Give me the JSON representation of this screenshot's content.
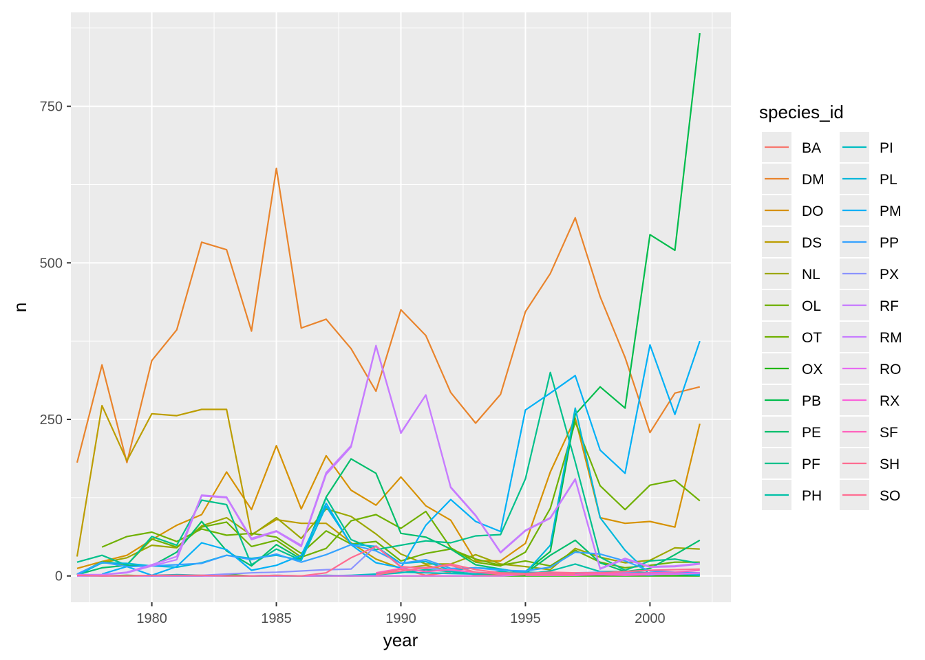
{
  "chart_data": {
    "type": "line",
    "xlabel": "year",
    "ylabel": "n",
    "xlim": [
      1976.75,
      2003.25
    ],
    "ylim": [
      -42,
      900
    ],
    "x_ticks": [
      1980,
      1985,
      1990,
      1995,
      2000
    ],
    "x_tick_labels": [
      "1980",
      "1985",
      "1990",
      "1995",
      "2000"
    ],
    "y_ticks": [
      0,
      250,
      500,
      750
    ],
    "y_tick_labels": [
      "0",
      "250",
      "500",
      "750"
    ],
    "grid": true,
    "legend_position": "right",
    "legend_title": "species_id",
    "series": [
      {
        "name": "BA",
        "color": "#F8766D",
        "x": [
          1989,
          1990,
          1991,
          1992
        ],
        "y": [
          3,
          11,
          1,
          6
        ]
      },
      {
        "name": "DM",
        "color": "#E9842C",
        "x": [
          1977,
          1978,
          1979,
          1980,
          1981,
          1982,
          1983,
          1984,
          1985,
          1986,
          1987,
          1988,
          1989,
          1990,
          1991,
          1992,
          1993,
          1994,
          1995,
          1996,
          1997,
          1998,
          1999,
          2000,
          2001,
          2002
        ],
        "y": [
          181,
          337,
          181,
          344,
          393,
          533,
          521,
          391,
          651,
          396,
          410,
          363,
          295,
          425,
          384,
          293,
          244,
          290,
          422,
          483,
          572,
          446,
          349,
          229,
          292,
          302
        ]
      },
      {
        "name": "DO",
        "color": "#D69100",
        "x": [
          1977,
          1978,
          1979,
          1980,
          1981,
          1982,
          1983,
          1984,
          1985,
          1986,
          1987,
          1988,
          1989,
          1990,
          1991,
          1992,
          1993,
          1994,
          1995,
          1996,
          1997,
          1998,
          1999,
          2000,
          2001,
          2002
        ],
        "y": [
          12,
          23,
          33,
          58,
          81,
          98,
          166,
          106,
          208,
          107,
          192,
          137,
          113,
          158,
          112,
          89,
          24,
          24,
          52,
          166,
          252,
          93,
          84,
          87,
          78,
          243
        ]
      },
      {
        "name": "DS",
        "color": "#BC9D00",
        "x": [
          1977,
          1978,
          1979,
          1980,
          1981,
          1982,
          1983,
          1984,
          1985,
          1986,
          1987,
          1988,
          1989,
          1990,
          1991,
          1992,
          1993,
          1994,
          1995
        ],
        "y": [
          31,
          272,
          184,
          259,
          256,
          266,
          266,
          66,
          90,
          84,
          84,
          53,
          27,
          12,
          17,
          8,
          2,
          1,
          5
        ]
      },
      {
        "name": "NL",
        "color": "#9CA700",
        "x": [
          1977,
          1978,
          1979,
          1980,
          1981,
          1982,
          1983,
          1984,
          1985,
          1986,
          1987,
          1988,
          1989,
          1990,
          1991,
          1992,
          1993,
          1994,
          1995,
          1996,
          1997,
          1998,
          1999,
          2000,
          2001,
          2002
        ],
        "y": [
          2,
          21,
          29,
          49,
          45,
          80,
          93,
          65,
          93,
          60,
          107,
          95,
          67,
          35,
          19,
          19,
          34,
          19,
          15,
          10,
          44,
          30,
          21,
          25,
          45,
          43
        ]
      },
      {
        "name": "OL",
        "color": "#6FB000",
        "x": [
          1978,
          1979,
          1980,
          1981,
          1982,
          1983,
          1984,
          1985,
          1986,
          1987,
          1988,
          1989,
          1990,
          1991,
          1992,
          1993,
          1994,
          1995,
          1996,
          1997,
          1998,
          1999,
          2000,
          2001,
          2002
        ],
        "y": [
          46,
          63,
          70,
          55,
          75,
          65,
          68,
          62,
          36,
          72,
          51,
          55,
          24,
          36,
          43,
          27,
          17,
          24,
          16,
          41,
          22,
          13,
          17,
          22,
          22
        ]
      },
      {
        "name": "OT",
        "color": "#6FB000",
        "x": [
          1977,
          1978,
          1979,
          1980,
          1981,
          1982,
          1983,
          1984,
          1985,
          1986,
          1987,
          1988,
          1989,
          1990,
          1991,
          1992,
          1993,
          1994,
          1995,
          1996,
          1997,
          1998,
          1999,
          2000,
          2001,
          2002
        ],
        "y": [
          2,
          23,
          18,
          59,
          46,
          78,
          86,
          47,
          57,
          30,
          44,
          88,
          98,
          76,
          103,
          45,
          22,
          16,
          38,
          108,
          246,
          144,
          106,
          145,
          153,
          120
        ]
      },
      {
        "name": "OX",
        "color": "#22B700",
        "x": [
          1977,
          1978,
          1979,
          1980,
          1981,
          1982,
          1983,
          1984,
          1985,
          1986,
          1987,
          1988,
          1989,
          1990,
          1991,
          1992,
          1993,
          1994,
          1995,
          1996,
          1997,
          1998,
          1999,
          2000,
          2001,
          2002
        ],
        "y": [
          2,
          0,
          1,
          0,
          0,
          0,
          2,
          0,
          0,
          0,
          0,
          0,
          0,
          0,
          0,
          0,
          0,
          0,
          0,
          0,
          0,
          0,
          0,
          0,
          0,
          0
        ]
      },
      {
        "name": "PB",
        "color": "#00BC4B",
        "x": [
          1995,
          1996,
          1997,
          1998,
          1999,
          2000,
          2001,
          2002
        ],
        "y": [
          7,
          39,
          258,
          302,
          268,
          545,
          520,
          867
        ]
      },
      {
        "name": "PE",
        "color": "#00BE6C",
        "x": [
          1977,
          1978,
          1979,
          1980,
          1981,
          1982,
          1983,
          1984,
          1985,
          1986,
          1987,
          1988,
          1989,
          1990,
          1991,
          1992,
          1993,
          1994,
          1995,
          1996,
          1997,
          1998,
          1999,
          2000,
          2001,
          2002
        ],
        "y": [
          2,
          13,
          17,
          16,
          38,
          87,
          40,
          16,
          50,
          27,
          126,
          187,
          164,
          68,
          62,
          43,
          18,
          11,
          4,
          33,
          57,
          21,
          7,
          12,
          34,
          57
        ]
      },
      {
        "name": "PF",
        "color": "#00C08B",
        "x": [
          1977,
          1978,
          1979,
          1980,
          1981,
          1982,
          1983,
          1984,
          1985,
          1986,
          1987,
          1988,
          1989,
          1990,
          1991,
          1992,
          1993,
          1994,
          1995,
          1996,
          1997,
          1998,
          1999,
          2000,
          2001,
          2002
        ],
        "y": [
          22,
          33,
          17,
          63,
          49,
          121,
          114,
          18,
          43,
          25,
          125,
          58,
          42,
          49,
          56,
          53,
          64,
          66,
          155,
          325,
          182,
          30,
          9,
          24,
          27,
          20
        ]
      },
      {
        "name": "PH",
        "color": "#00C0A7",
        "x": [
          1977,
          1978,
          1979,
          1980,
          1981,
          1982,
          1983,
          1984,
          1985,
          1986,
          1987,
          1988,
          1989,
          1990,
          1991,
          1992,
          1993,
          1994,
          1995,
          1996,
          1997,
          1998,
          1999,
          2000,
          2001,
          2002
        ],
        "y": [
          0,
          0,
          0,
          0,
          0,
          0,
          0,
          0,
          0,
          0,
          1,
          0,
          2,
          5,
          10,
          7,
          3,
          7,
          3,
          8,
          19,
          7,
          7,
          5,
          3,
          2
        ]
      },
      {
        "name": "PI",
        "color": "#00BDC2",
        "x": [
          1980,
          1981,
          1982,
          1983,
          1984,
          1985,
          1986,
          1987,
          1988,
          1989,
          1990,
          1991,
          1992,
          1993,
          1994,
          1995,
          1996,
          1997,
          1998,
          1999,
          2000,
          2001,
          2002
        ],
        "y": [
          1,
          2,
          1,
          0,
          0,
          1,
          0,
          0,
          1,
          3,
          6,
          5,
          4,
          3,
          4,
          6,
          5,
          4,
          3,
          3,
          1,
          5,
          3
        ]
      },
      {
        "name": "PL",
        "color": "#00B8DB",
        "x": [
          1977,
          1978,
          1979,
          1980,
          1981,
          1982,
          1983,
          1984,
          1985,
          1986,
          1987,
          1988,
          1989,
          1990,
          1991,
          1992,
          1993,
          1994,
          1995,
          1996,
          1997,
          1998,
          1999,
          2000,
          2001,
          2002
        ],
        "y": [
          1,
          21,
          20,
          16,
          14,
          21,
          33,
          28,
          33,
          25,
          111,
          51,
          47,
          20,
          23,
          9,
          13,
          11,
          5,
          49,
          268,
          93,
          41,
          2,
          3,
          1
        ]
      },
      {
        "name": "PM",
        "color": "#00B0F6",
        "x": [
          1978,
          1979,
          1980,
          1981,
          1982,
          1983,
          1984,
          1985,
          1986,
          1987,
          1988,
          1989,
          1990,
          1991,
          1992,
          1993,
          1994,
          1995,
          1996,
          1997,
          1998,
          1999,
          2000,
          2001,
          2002
        ],
        "y": [
          3,
          15,
          1,
          15,
          53,
          42,
          9,
          17,
          33,
          116,
          50,
          21,
          13,
          81,
          122,
          87,
          71,
          265,
          292,
          320,
          201,
          164,
          369,
          258,
          375
        ]
      },
      {
        "name": "PP",
        "color": "#35A2FF",
        "x": [
          1977,
          1978,
          1979,
          1980,
          1981,
          1982,
          1983,
          1984,
          1985,
          1986,
          1987,
          1988,
          1989,
          1990,
          1991,
          1992,
          1993,
          1994,
          1995,
          1996,
          1997,
          1998,
          1999,
          2000,
          2001,
          2002
        ],
        "y": [
          3,
          22,
          15,
          16,
          18,
          20,
          33,
          26,
          35,
          22,
          34,
          50,
          40,
          20,
          26,
          12,
          13,
          9,
          8,
          14,
          38,
          35,
          24,
          8,
          6,
          5
        ]
      },
      {
        "name": "PX",
        "color": "#8B93FF",
        "x": [
          1982,
          1983,
          1984,
          1985,
          1986,
          1987,
          1988,
          1989,
          1990,
          1991,
          1992,
          1993,
          1994,
          1995,
          1996,
          1997,
          1998,
          1999,
          2000,
          2001,
          2002
        ],
        "y": [
          1,
          3,
          5,
          6,
          8,
          10,
          11,
          48,
          14,
          13,
          9,
          6,
          4,
          3,
          3,
          5,
          6,
          5,
          4,
          3,
          4
        ]
      },
      {
        "name": "RF",
        "color": "#C77CFF",
        "x": [
          1977,
          1978,
          1979,
          1980,
          1981,
          1982,
          1983,
          1984,
          1985,
          1986,
          1987,
          1988,
          1989,
          1990,
          1991,
          1992,
          1993,
          1994,
          1995,
          1996,
          1997,
          1998,
          1999,
          2000,
          2001,
          2002
        ],
        "y": [
          0,
          2,
          5,
          16,
          26,
          128,
          125,
          58,
          71,
          47,
          162,
          206,
          367,
          228,
          289,
          141,
          96,
          37,
          72,
          92,
          154,
          11,
          27,
          14,
          15,
          19
        ]
      },
      {
        "name": "RM",
        "color": "#C77CFF",
        "x": [
          1977,
          1978,
          1979,
          1980,
          1981,
          1982,
          1983,
          1984,
          1985,
          1986,
          1987,
          1988,
          1989,
          1990,
          1991,
          1992,
          1993,
          1994,
          1995,
          1996,
          1997,
          1998,
          1999,
          2000,
          2001,
          2002
        ],
        "y": [
          2,
          2,
          6,
          18,
          31,
          129,
          126,
          60,
          72,
          49,
          165,
          208,
          368,
          229,
          289,
          142,
          97,
          38,
          73,
          93,
          155,
          12,
          28,
          15,
          16,
          20
        ]
      },
      {
        "name": "RO",
        "color": "#E76BF3",
        "x": [
          1977,
          1978,
          1979,
          1980,
          1981,
          1982,
          1983,
          1984,
          1985,
          1986,
          1987,
          1988,
          1989,
          1990,
          1991,
          1992,
          1993,
          1994,
          1995,
          1996,
          1997,
          1998,
          1999,
          2000,
          2001,
          2002
        ],
        "y": [
          0,
          0,
          0,
          0,
          0,
          0,
          0,
          0,
          0,
          0,
          0,
          0,
          0,
          0,
          0,
          0,
          0,
          0,
          2,
          2,
          1,
          3,
          2,
          2,
          3,
          5
        ]
      },
      {
        "name": "RX",
        "color": "#FA62DB",
        "x": [
          1995,
          1996,
          1997,
          1998,
          1999,
          2000
        ],
        "y": [
          1,
          1,
          1,
          2,
          1,
          2
        ]
      },
      {
        "name": "SF",
        "color": "#FF62BC",
        "x": [
          1989,
          1990,
          1991,
          1992,
          1993,
          1994,
          1995,
          1996,
          1997,
          1998,
          1999,
          2000,
          2001,
          2002
        ],
        "y": [
          5,
          12,
          7,
          10,
          6,
          3,
          2,
          2,
          2,
          4,
          3,
          5,
          6,
          9
        ]
      },
      {
        "name": "SH",
        "color": "#FF6C91",
        "x": [
          1977,
          1978,
          1979,
          1980,
          1981,
          1982,
          1983,
          1984,
          1985,
          1986,
          1987,
          1988,
          1989,
          1990,
          1991,
          1992,
          1993,
          1994,
          1995,
          1996,
          1997,
          1998,
          1999,
          2000,
          2001,
          2002
        ],
        "y": [
          1,
          0,
          0,
          1,
          1,
          1,
          0,
          0,
          1,
          0,
          5,
          29,
          47,
          15,
          12,
          19,
          10,
          5,
          4,
          6,
          5,
          5,
          7,
          9,
          10,
          11
        ]
      },
      {
        "name": "SO",
        "color": "#FF6C91",
        "x": [
          1989,
          1990,
          1991,
          1992,
          1993,
          1994,
          1995,
          1996,
          1997
        ],
        "y": [
          2,
          8,
          13,
          17,
          6,
          4,
          2,
          3,
          3
        ]
      }
    ]
  }
}
